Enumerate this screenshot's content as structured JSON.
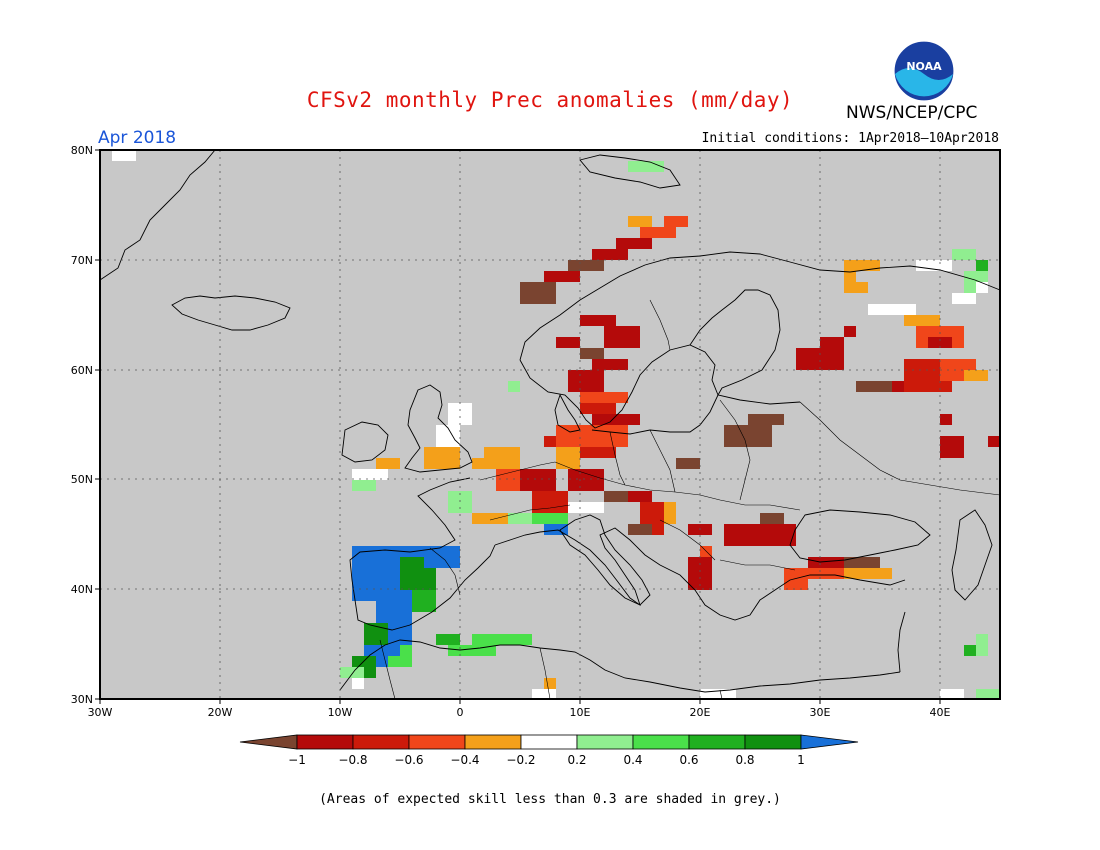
{
  "header": {
    "title": "CFSv2 monthly Prec anomalies (mm/day)",
    "agency": "NWS/NCEP/CPC",
    "logo_text": "NOAA",
    "month": "Apr 2018",
    "initial_conditions": "Initial conditions: 1Apr2018–10Apr2018"
  },
  "map": {
    "lat_labels": [
      "80N",
      "70N",
      "60N",
      "50N",
      "40N",
      "30N"
    ],
    "lon_labels": [
      "30W",
      "20W",
      "10W",
      "0",
      "10E",
      "20E",
      "30E",
      "40E"
    ],
    "lon_range": [
      -30,
      45
    ],
    "lat_range": [
      30,
      80
    ],
    "background_color": "#c8c8c8",
    "gridlines": "dotted"
  },
  "colorbar": {
    "ticks": [
      "−1",
      "−0.8",
      "−0.6",
      "−0.4",
      "−0.2",
      "0.2",
      "0.4",
      "0.6",
      "0.8",
      "1"
    ],
    "colors": [
      "#7a4430",
      "#b40a0a",
      "#cc1a0a",
      "#f0461a",
      "#f4a01a",
      "#ffffff",
      "#90ee90",
      "#4ae04a",
      "#20b020",
      "#109010",
      "#1870d8"
    ]
  },
  "footnote": "(Areas of expected skill less than 0.3 are shaded in grey.)",
  "legend_palette": {
    "dark_brown": "#7a4430",
    "dark_red": "#b40a0a",
    "red": "#cc1a0a",
    "orange_red": "#f0461a",
    "orange": "#f4a01a",
    "white": "#ffffff",
    "light_green": "#90ee90",
    "green": "#4ae04a",
    "mid_green": "#20b020",
    "dark_green": "#109010",
    "blue": "#1870d8"
  }
}
